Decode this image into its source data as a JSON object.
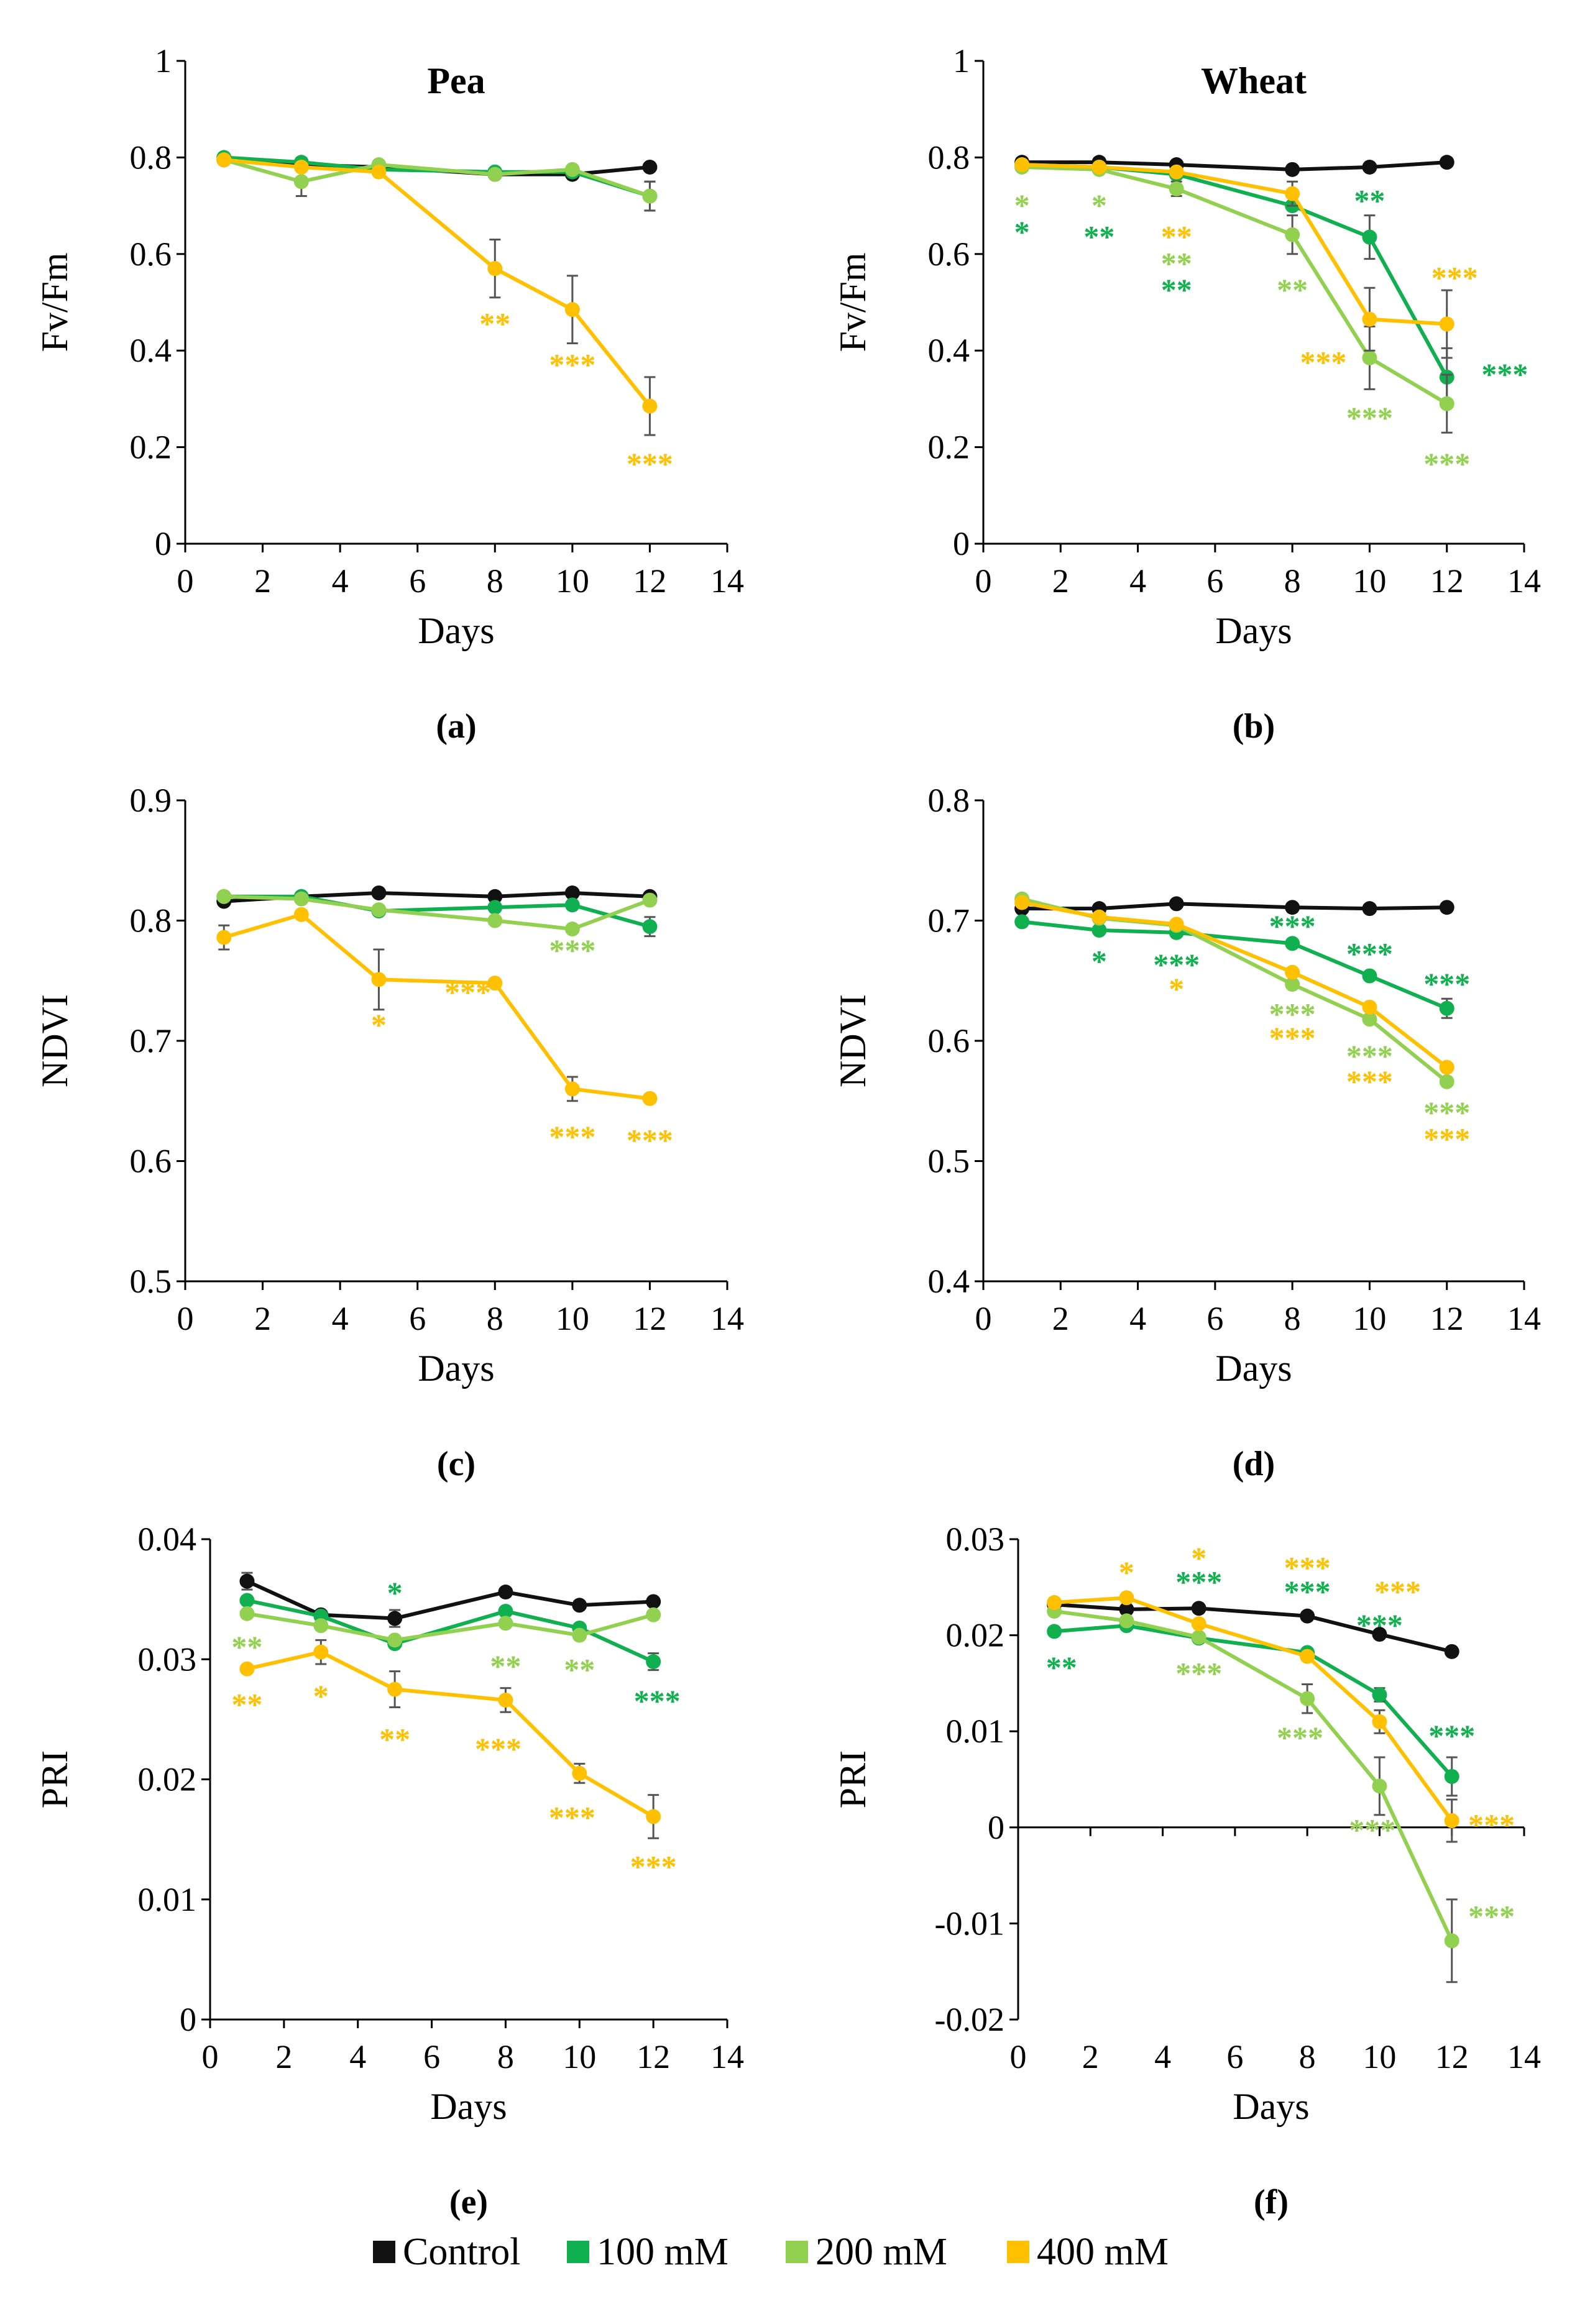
{
  "legend": {
    "items": [
      {
        "label": "Control",
        "color": "#111111"
      },
      {
        "label": "100 mM",
        "color": "#10b050"
      },
      {
        "label": "200 mM",
        "color": "#92d050"
      },
      {
        "label": "400 mM",
        "color": "#ffc000"
      }
    ]
  },
  "chart_data": [
    {
      "id": "a",
      "type": "line",
      "panel_label": "(a)",
      "title": "Pea",
      "xlabel": "Days",
      "ylabel": "Fv/Fm",
      "xlim": [
        0,
        14
      ],
      "ylim": [
        0,
        1
      ],
      "xticks": [
        0,
        2,
        4,
        6,
        8,
        10,
        12,
        14
      ],
      "yticks": [
        0,
        0.2,
        0.4,
        0.6,
        0.8,
        1
      ],
      "ytick_labels": [
        "0",
        "0.2",
        "0.4",
        "0.6",
        "0.8",
        "1"
      ],
      "x": [
        1,
        3,
        5,
        8,
        10,
        12
      ],
      "series": [
        {
          "name": "Control",
          "values": [
            0.795,
            0.785,
            0.78,
            0.765,
            0.765,
            0.78
          ],
          "errors": [
            0,
            0,
            0,
            0,
            0,
            0
          ]
        },
        {
          "name": "100 mM",
          "values": [
            0.8,
            0.79,
            0.775,
            0.77,
            0.77,
            0.72
          ],
          "errors": [
            0,
            0,
            0,
            0,
            0,
            0.03
          ]
        },
        {
          "name": "200 mM",
          "values": [
            0.795,
            0.75,
            0.785,
            0.765,
            0.775,
            0.72
          ],
          "errors": [
            0,
            0.03,
            0,
            0,
            0,
            0.03
          ]
        },
        {
          "name": "400 mM",
          "values": [
            0.795,
            0.78,
            0.77,
            0.57,
            0.485,
            0.285
          ],
          "errors": [
            0,
            0,
            0,
            0.06,
            0.07,
            0.06
          ]
        }
      ],
      "annotations": [
        {
          "x": 8,
          "y": 0.455,
          "text": "**",
          "series": "400 mM"
        },
        {
          "x": 10,
          "y": 0.37,
          "text": "***",
          "series": "400 mM"
        },
        {
          "x": 12,
          "y": 0.165,
          "text": "***",
          "series": "400 mM"
        }
      ]
    },
    {
      "id": "b",
      "type": "line",
      "panel_label": "(b)",
      "title": "Wheat",
      "xlabel": "Days",
      "ylabel": "Fv/Fm",
      "xlim": [
        0,
        14
      ],
      "ylim": [
        0,
        1
      ],
      "xticks": [
        0,
        2,
        4,
        6,
        8,
        10,
        12,
        14
      ],
      "yticks": [
        0,
        0.2,
        0.4,
        0.6,
        0.8,
        1
      ],
      "ytick_labels": [
        "0",
        "0.2",
        "0.4",
        "0.6",
        "0.8",
        "1"
      ],
      "x": [
        1,
        3,
        5,
        8,
        10,
        12
      ],
      "series": [
        {
          "name": "Control",
          "values": [
            0.79,
            0.79,
            0.785,
            0.775,
            0.78,
            0.79
          ],
          "errors": [
            0,
            0,
            0,
            0,
            0,
            0
          ]
        },
        {
          "name": "100 mM",
          "values": [
            0.785,
            0.78,
            0.765,
            0.7,
            0.635,
            0.345
          ],
          "errors": [
            0,
            0,
            0,
            0,
            0.045,
            0.06
          ]
        },
        {
          "name": "200 mM",
          "values": [
            0.78,
            0.775,
            0.735,
            0.64,
            0.385,
            0.29
          ],
          "errors": [
            0,
            0,
            0.015,
            0.04,
            0.065,
            0.06
          ]
        },
        {
          "name": "400 mM",
          "values": [
            0.785,
            0.78,
            0.77,
            0.725,
            0.465,
            0.455
          ],
          "errors": [
            0,
            0,
            0,
            0.025,
            0.065,
            0.07
          ]
        }
      ],
      "annotations": [
        {
          "x": 1,
          "y": 0.7,
          "text": "*",
          "series": "200 mM"
        },
        {
          "x": 1,
          "y": 0.645,
          "text": "*",
          "series": "100 mM"
        },
        {
          "x": 3,
          "y": 0.7,
          "text": "*",
          "series": "200 mM"
        },
        {
          "x": 3,
          "y": 0.635,
          "text": "**",
          "series": "100 mM"
        },
        {
          "x": 5,
          "y": 0.635,
          "text": "**",
          "series": "400 mM"
        },
        {
          "x": 5,
          "y": 0.58,
          "text": "**",
          "series": "200 mM"
        },
        {
          "x": 5,
          "y": 0.525,
          "text": "**",
          "series": "100 mM"
        },
        {
          "x": 8,
          "y": 0.525,
          "text": "**",
          "series": "200 mM"
        },
        {
          "x": 10,
          "y": 0.71,
          "text": "**",
          "series": "100 mM"
        },
        {
          "x": 8.8,
          "y": 0.375,
          "text": "***",
          "series": "400 mM"
        },
        {
          "x": 10,
          "y": 0.26,
          "text": "***",
          "series": "200 mM"
        },
        {
          "x": 12.2,
          "y": 0.55,
          "text": "***",
          "series": "400 mM"
        },
        {
          "x": 13.5,
          "y": 0.35,
          "text": "***",
          "series": "100 mM"
        },
        {
          "x": 12,
          "y": 0.165,
          "text": "***",
          "series": "200 mM"
        }
      ]
    },
    {
      "id": "c",
      "type": "line",
      "panel_label": "(c)",
      "title": "",
      "xlabel": "Days",
      "ylabel": "NDVI",
      "xlim": [
        0,
        14
      ],
      "ylim": [
        0.5,
        0.9
      ],
      "xticks": [
        0,
        2,
        4,
        6,
        8,
        10,
        12,
        14
      ],
      "yticks": [
        0.5,
        0.6,
        0.7,
        0.8,
        0.9
      ],
      "ytick_labels": [
        "0.5",
        "0.6",
        "0.7",
        "0.8",
        "0.9"
      ],
      "x": [
        1,
        3,
        5,
        8,
        10,
        12
      ],
      "series": [
        {
          "name": "Control",
          "values": [
            0.816,
            0.82,
            0.823,
            0.82,
            0.823,
            0.82
          ],
          "errors": [
            0,
            0,
            0,
            0,
            0,
            0
          ]
        },
        {
          "name": "100 mM",
          "values": [
            0.82,
            0.82,
            0.808,
            0.811,
            0.813,
            0.795
          ],
          "errors": [
            0,
            0,
            0,
            0,
            0,
            0.008
          ]
        },
        {
          "name": "200 mM",
          "values": [
            0.82,
            0.818,
            0.809,
            0.8,
            0.793,
            0.817
          ],
          "errors": [
            0,
            0,
            0,
            0,
            0,
            0
          ]
        },
        {
          "name": "400 mM",
          "values": [
            0.786,
            0.805,
            0.751,
            0.748,
            0.66,
            0.652
          ],
          "errors": [
            0.01,
            0,
            0.025,
            0,
            0.01,
            0
          ]
        }
      ],
      "annotations": [
        {
          "x": 10,
          "y": 0.775,
          "text": "***",
          "series": "200 mM"
        },
        {
          "x": 5,
          "y": 0.713,
          "text": "*",
          "series": "400 mM"
        },
        {
          "x": 7.3,
          "y": 0.74,
          "text": "***",
          "series": "400 mM"
        },
        {
          "x": 10,
          "y": 0.62,
          "text": "***",
          "series": "400 mM"
        },
        {
          "x": 12,
          "y": 0.617,
          "text": "***",
          "series": "400 mM"
        }
      ]
    },
    {
      "id": "d",
      "type": "line",
      "panel_label": "(d)",
      "title": "",
      "xlabel": "Days",
      "ylabel": "NDVI",
      "xlim": [
        0,
        14
      ],
      "ylim": [
        0.4,
        0.8
      ],
      "xticks": [
        0,
        2,
        4,
        6,
        8,
        10,
        12,
        14
      ],
      "yticks": [
        0.4,
        0.5,
        0.6,
        0.7,
        0.8
      ],
      "ytick_labels": [
        "0.4",
        "0.5",
        "0.6",
        "0.7",
        "0.8"
      ],
      "x": [
        1,
        3,
        5,
        8,
        10,
        12
      ],
      "series": [
        {
          "name": "Control",
          "values": [
            0.71,
            0.71,
            0.714,
            0.711,
            0.71,
            0.711
          ],
          "errors": [
            0,
            0,
            0,
            0,
            0,
            0
          ]
        },
        {
          "name": "100 mM",
          "values": [
            0.699,
            0.692,
            0.69,
            0.681,
            0.654,
            0.627
          ],
          "errors": [
            0,
            0,
            0,
            0,
            0,
            0.008
          ]
        },
        {
          "name": "200 mM",
          "values": [
            0.718,
            0.702,
            0.696,
            0.647,
            0.618,
            0.566
          ],
          "errors": [
            0,
            0,
            0,
            0,
            0,
            0
          ]
        },
        {
          "name": "400 mM",
          "values": [
            0.715,
            0.703,
            0.697,
            0.657,
            0.628,
            0.578
          ],
          "errors": [
            0,
            0,
            0,
            0,
            0,
            0
          ]
        }
      ],
      "annotations": [
        {
          "x": 3,
          "y": 0.666,
          "text": "*",
          "series": "100 mM"
        },
        {
          "x": 5,
          "y": 0.663,
          "text": "***",
          "series": "100 mM"
        },
        {
          "x": 5,
          "y": 0.643,
          "text": "*",
          "series": "400 mM"
        },
        {
          "x": 8,
          "y": 0.695,
          "text": "***",
          "series": "100 mM"
        },
        {
          "x": 10,
          "y": 0.672,
          "text": "***",
          "series": "100 mM"
        },
        {
          "x": 12,
          "y": 0.647,
          "text": "***",
          "series": "100 mM"
        },
        {
          "x": 8,
          "y": 0.622,
          "text": "***",
          "series": "200 mM"
        },
        {
          "x": 8,
          "y": 0.602,
          "text": "***",
          "series": "400 mM"
        },
        {
          "x": 10,
          "y": 0.587,
          "text": "***",
          "series": "200 mM"
        },
        {
          "x": 10,
          "y": 0.566,
          "text": "***",
          "series": "400 mM"
        },
        {
          "x": 12,
          "y": 0.54,
          "text": "***",
          "series": "200 mM"
        },
        {
          "x": 12,
          "y": 0.518,
          "text": "***",
          "series": "400 mM"
        }
      ]
    },
    {
      "id": "e",
      "type": "line",
      "panel_label": "(e)",
      "title": "",
      "xlabel": "Days",
      "ylabel": "PRI",
      "xlim": [
        0,
        14
      ],
      "ylim": [
        0,
        0.04
      ],
      "xticks": [
        0,
        2,
        4,
        6,
        8,
        10,
        12,
        14
      ],
      "yticks": [
        0,
        0.01,
        0.02,
        0.03,
        0.04
      ],
      "ytick_labels": [
        "0",
        "0.01",
        "0.02",
        "0.03",
        "0.04"
      ],
      "x": [
        1,
        3,
        5,
        8,
        10,
        12
      ],
      "series": [
        {
          "name": "Control",
          "values": [
            0.0365,
            0.0337,
            0.0334,
            0.0356,
            0.0345,
            0.0348
          ],
          "errors": [
            0.0007,
            0,
            0.0007,
            0,
            0,
            0
          ]
        },
        {
          "name": "100 mM",
          "values": [
            0.0349,
            0.0336,
            0.0313,
            0.034,
            0.0326,
            0.0298
          ],
          "errors": [
            0,
            0,
            0,
            0,
            0,
            0.0007
          ]
        },
        {
          "name": "200 mM",
          "values": [
            0.0338,
            0.0328,
            0.0316,
            0.033,
            0.032,
            0.0337
          ],
          "errors": [
            0,
            0,
            0,
            0,
            0,
            0
          ]
        },
        {
          "name": "400 mM",
          "values": [
            0.0292,
            0.0306,
            0.0275,
            0.0266,
            0.0205,
            0.0169
          ],
          "errors": [
            0,
            0.001,
            0.0015,
            0.001,
            0.0008,
            0.0018
          ]
        }
      ],
      "annotations": [
        {
          "x": 5,
          "y": 0.0355,
          "text": "*",
          "series": "100 mM"
        },
        {
          "x": 1,
          "y": 0.031,
          "text": "**",
          "series": "200 mM"
        },
        {
          "x": 1,
          "y": 0.0262,
          "text": "**",
          "series": "400 mM"
        },
        {
          "x": 3,
          "y": 0.0269,
          "text": "*",
          "series": "400 mM"
        },
        {
          "x": 5,
          "y": 0.0233,
          "text": "**",
          "series": "400 mM"
        },
        {
          "x": 8,
          "y": 0.0294,
          "text": "**",
          "series": "200 mM"
        },
        {
          "x": 7.8,
          "y": 0.0225,
          "text": "***",
          "series": "400 mM"
        },
        {
          "x": 10,
          "y": 0.0291,
          "text": "**",
          "series": "200 mM"
        },
        {
          "x": 12.1,
          "y": 0.0265,
          "text": "***",
          "series": "100 mM"
        },
        {
          "x": 9.8,
          "y": 0.0168,
          "text": "***",
          "series": "400 mM"
        },
        {
          "x": 12,
          "y": 0.0127,
          "text": "***",
          "series": "400 mM"
        }
      ]
    },
    {
      "id": "f",
      "type": "line",
      "panel_label": "(f)",
      "title": "",
      "xlabel": "Days",
      "ylabel": "PRI",
      "xlim": [
        0,
        14
      ],
      "ylim": [
        -0.02,
        0.03
      ],
      "xticks": [
        0,
        2,
        4,
        6,
        8,
        10,
        12,
        14
      ],
      "yticks": [
        -0.02,
        -0.01,
        0,
        0.01,
        0.02,
        0.03
      ],
      "ytick_labels": [
        "-0.02",
        "-0.01",
        "0",
        "0.01",
        "0.02",
        "0.03"
      ],
      "x": [
        1,
        3,
        5,
        8,
        10,
        12
      ],
      "series": [
        {
          "name": "Control",
          "values": [
            0.0232,
            0.0227,
            0.0228,
            0.022,
            0.0201,
            0.0183
          ],
          "errors": [
            0,
            0,
            0,
            0,
            0,
            0
          ]
        },
        {
          "name": "100 mM",
          "values": [
            0.0204,
            0.021,
            0.0197,
            0.0182,
            0.0138,
            0.0053
          ],
          "errors": [
            0,
            0,
            0,
            0,
            0.0007,
            0.002
          ]
        },
        {
          "name": "200 mM",
          "values": [
            0.0225,
            0.0215,
            0.0198,
            0.0134,
            0.0043,
            -0.0118
          ],
          "errors": [
            0,
            0,
            0,
            0.0015,
            0.003,
            0.0043
          ]
        },
        {
          "name": "400 mM",
          "values": [
            0.0234,
            0.0239,
            0.0212,
            0.0178,
            0.011,
            0.0007
          ],
          "errors": [
            0,
            0,
            0,
            0,
            0.0012,
            0.0022
          ]
        }
      ],
      "annotations": [
        {
          "x": 1.2,
          "y": 0.0166,
          "text": "**",
          "series": "100 mM"
        },
        {
          "x": 3,
          "y": 0.0265,
          "text": "*",
          "series": "400 mM"
        },
        {
          "x": 5,
          "y": 0.028,
          "text": "*",
          "series": "400 mM"
        },
        {
          "x": 5,
          "y": 0.0255,
          "text": "***",
          "series": "100 mM"
        },
        {
          "x": 5,
          "y": 0.016,
          "text": "***",
          "series": "200 mM"
        },
        {
          "x": 8,
          "y": 0.027,
          "text": "***",
          "series": "400 mM"
        },
        {
          "x": 8,
          "y": 0.0245,
          "text": "***",
          "series": "100 mM"
        },
        {
          "x": 7.8,
          "y": 0.0093,
          "text": "***",
          "series": "200 mM"
        },
        {
          "x": 10.5,
          "y": 0.0245,
          "text": "***",
          "series": "400 mM"
        },
        {
          "x": 10,
          "y": 0.021,
          "text": "***",
          "series": "100 mM"
        },
        {
          "x": 12,
          "y": 0.0095,
          "text": "***",
          "series": "100 mM"
        },
        {
          "x": 9.8,
          "y": -0.0003,
          "text": "***",
          "series": "200 mM"
        },
        {
          "x": 13.1,
          "y": 0.0002,
          "text": "***",
          "series": "400 mM"
        },
        {
          "x": 13.1,
          "y": -0.0093,
          "text": "***",
          "series": "200 mM"
        }
      ]
    }
  ]
}
